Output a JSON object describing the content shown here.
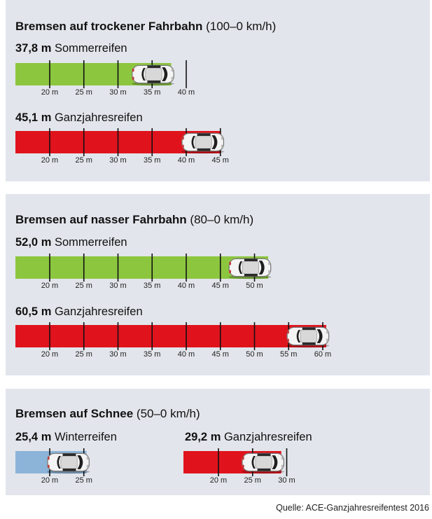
{
  "colors": {
    "panel_bg": "#e2e5eb",
    "sommer": "#8cc63f",
    "ganzjahres": "#e0131d",
    "winter": "#8cb4d8",
    "tick": "#111111"
  },
  "sections": [
    {
      "title_bold": "Bremsen auf trockener Fahrbahn",
      "title_rest": " (100–0 km/h)"
    },
    {
      "title_bold": "Bremsen auf nasser Fahrbahn",
      "title_rest": " (80–0 km/h)"
    },
    {
      "title_bold": "Bremsen auf Schnee",
      "title_rest": " (50–0 km/h)"
    }
  ],
  "chart_data": [
    {
      "type": "bar",
      "title": "Bremsen auf trockener Fahrbahn (100–0 km/h)",
      "unit": "m",
      "series": [
        {
          "name": "Sommerreifen",
          "value": 37.8,
          "value_label": "37,8 m",
          "color": "#8cc63f",
          "ticks": [
            20,
            25,
            30,
            35,
            40
          ]
        },
        {
          "name": "Ganzjahresreifen",
          "value": 45.1,
          "value_label": "45,1 m",
          "color": "#e0131d",
          "ticks": [
            20,
            25,
            30,
            35,
            40,
            45
          ]
        }
      ]
    },
    {
      "type": "bar",
      "title": "Bremsen auf nasser Fahrbahn (80–0 km/h)",
      "unit": "m",
      "series": [
        {
          "name": "Sommerreifen",
          "value": 52.0,
          "value_label": "52,0 m",
          "color": "#8cc63f",
          "ticks": [
            20,
            25,
            30,
            35,
            40,
            45,
            50
          ]
        },
        {
          "name": "Ganzjahresreifen",
          "value": 60.5,
          "value_label": "60,5 m",
          "color": "#e0131d",
          "ticks": [
            20,
            25,
            30,
            35,
            40,
            45,
            50,
            55,
            60
          ]
        }
      ]
    },
    {
      "type": "bar",
      "title": "Bremsen auf Schnee (50–0 km/h)",
      "unit": "m",
      "series": [
        {
          "name": "Winterreifen",
          "value": 25.4,
          "value_label": "25,4 m",
          "color": "#8cb4d8",
          "ticks": [
            20,
            25
          ]
        },
        {
          "name": "Ganzjahresreifen",
          "value": 29.2,
          "value_label": "29,2 m",
          "color": "#e0131d",
          "ticks": [
            20,
            25,
            30
          ]
        }
      ]
    }
  ],
  "source": "Quelle: ACE-Ganzjahresreifentest 2016"
}
